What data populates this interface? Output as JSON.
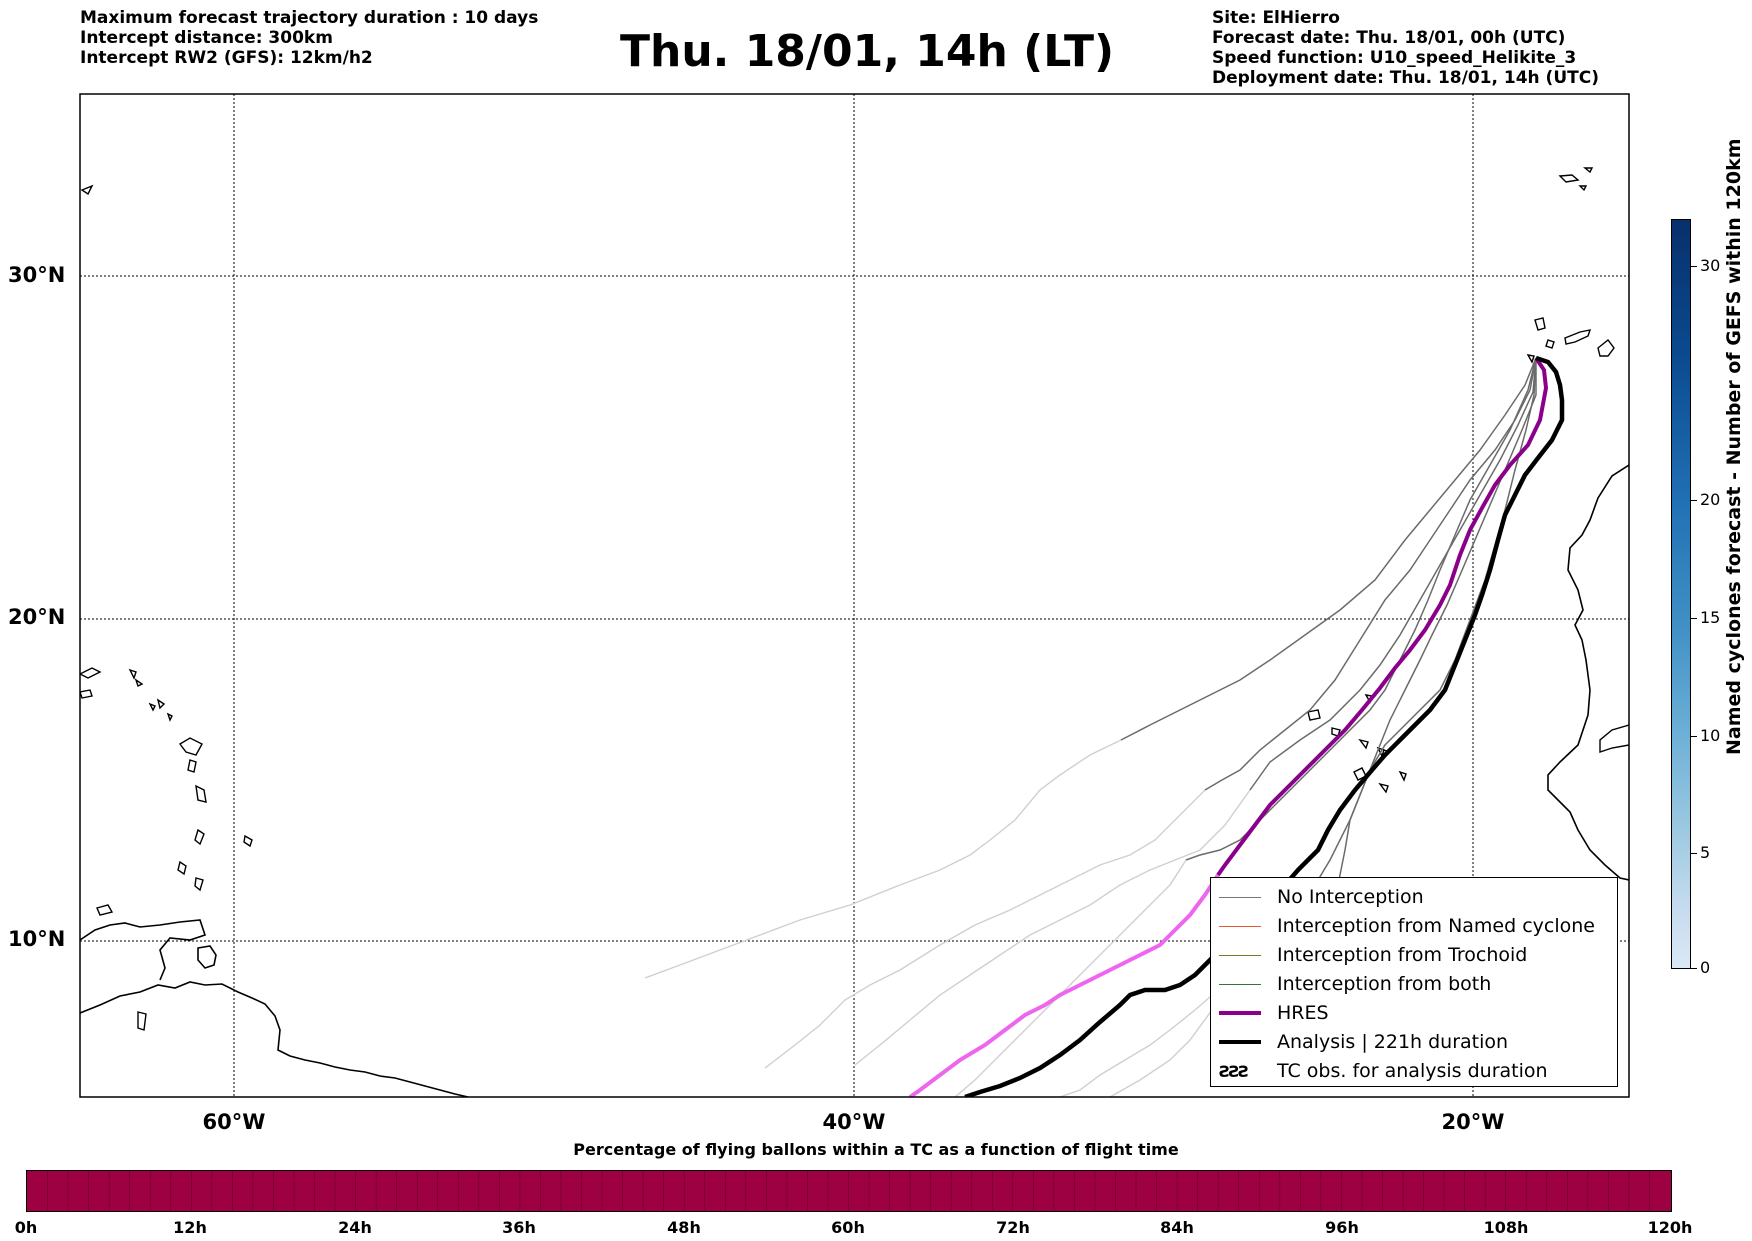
{
  "header_left": [
    "Maximum forecast trajectory duration : 10 days",
    "Intercept distance: 300km",
    "Intercept RW2 (GFS):  12km/h2"
  ],
  "title": "Thu. 18/01, 14h (LT)",
  "header_right": [
    "Site: ElHierro",
    "Forecast date: Thu. 18/01, 00h (UTC)",
    "Speed function: U10_speed_Helikite_3",
    "Deployment date: Thu. 18/01, 14h (UTC)"
  ],
  "map": {
    "lat_labels": [
      "30°N",
      "20°N",
      "10°N"
    ],
    "lon_labels": [
      "60°W",
      "40°W",
      "20°W"
    ],
    "grid": "dotted"
  },
  "legend": {
    "items": [
      {
        "label": "No Interception",
        "color": "#777777",
        "style": "thin"
      },
      {
        "label": "Interception from Named cyclone",
        "color": "#e2572f",
        "style": "thin"
      },
      {
        "label": "Interception from Trochoid",
        "color": "#7a7a22",
        "style": "thin"
      },
      {
        "label": "Interception from both",
        "color": "#2a7a2a",
        "style": "thin"
      },
      {
        "label": "HRES",
        "color": "#8b008b",
        "style": "thick"
      },
      {
        "label": "Analysis | 221h duration",
        "color": "#000000",
        "style": "thick"
      },
      {
        "label": "TC obs. for analysis duration",
        "symbol": "ƧƧƧ",
        "style": "symbol"
      }
    ]
  },
  "colorbar_vertical": {
    "label": "Named cyclones forecast - Number of GEFS within 120km",
    "ticks": [
      "30",
      "20",
      "15",
      "10",
      "5",
      "0"
    ],
    "colors": [
      "#08306b",
      "#2171b5",
      "#4292c6",
      "#6baed6",
      "#9ecae1",
      "#c6dbef",
      "#dbe9f6"
    ]
  },
  "colorbar_horizontal": {
    "title": "Percentage of flying ballons within a TC as a function of flight time",
    "ticks": [
      "0h",
      "12h",
      "24h",
      "36h",
      "48h",
      "60h",
      "72h",
      "84h",
      "96h",
      "108h",
      "120h"
    ],
    "color": "#9e0142"
  }
}
